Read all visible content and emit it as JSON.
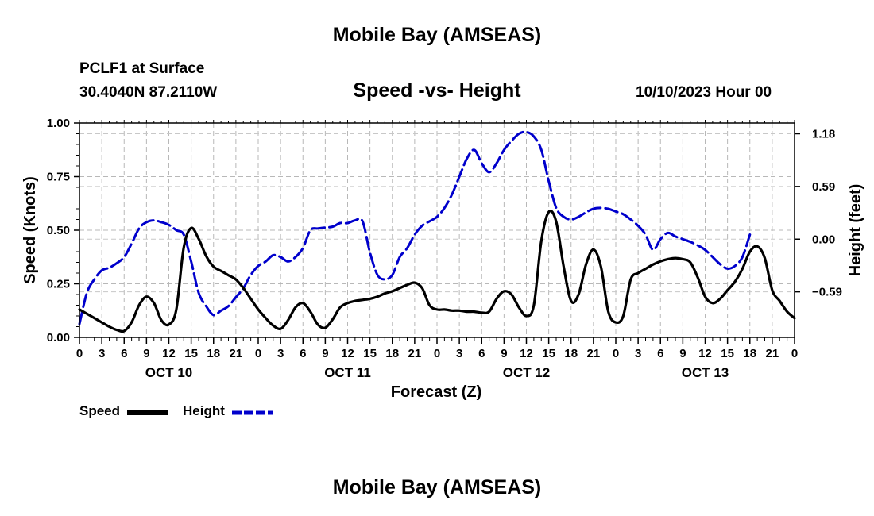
{
  "header": {
    "title": "Mobile Bay (AMSEAS)",
    "station": "PCLF1 at Surface",
    "coords": "30.4040N  87.2110W",
    "date": "10/10/2023 Hour 00",
    "footer_title": "Mobile Bay (AMSEAS)"
  },
  "chart_data": {
    "type": "line",
    "title": "Speed -vs- Height",
    "xlabel": "Forecast (Z)",
    "ylabel_left": "Speed (Knots)",
    "ylabel_right": "Height (feet)",
    "x_unit": "hours from 10/10/2023 00Z",
    "xlim": [
      0,
      96
    ],
    "ylim_left": [
      0,
      1
    ],
    "ylim_right": [
      -1.1,
      1.3
    ],
    "left_ticks": [
      {
        "v": 0,
        "label": "0.00"
      },
      {
        "v": 0.25,
        "label": "0.25"
      },
      {
        "v": 0.5,
        "label": "0.50"
      },
      {
        "v": 0.75,
        "label": "0.75"
      },
      {
        "v": 1.0,
        "label": "1.00"
      }
    ],
    "right_ticks": [
      {
        "v": 1.18,
        "label": "1.18"
      },
      {
        "v": 0.59,
        "label": "0.59"
      },
      {
        "v": 0.0,
        "label": "0.00"
      },
      {
        "v": -0.59,
        "label": "−0.59"
      }
    ],
    "x_ticks": [
      {
        "h": 0,
        "label": "0"
      },
      {
        "h": 3,
        "label": "3"
      },
      {
        "h": 6,
        "label": "6"
      },
      {
        "h": 9,
        "label": "9"
      },
      {
        "h": 12,
        "label": "12"
      },
      {
        "h": 15,
        "label": "15"
      },
      {
        "h": 18,
        "label": "18"
      },
      {
        "h": 21,
        "label": "21"
      },
      {
        "h": 24,
        "label": "0"
      },
      {
        "h": 27,
        "label": "3"
      },
      {
        "h": 30,
        "label": "6"
      },
      {
        "h": 33,
        "label": "9"
      },
      {
        "h": 36,
        "label": "12"
      },
      {
        "h": 39,
        "label": "15"
      },
      {
        "h": 42,
        "label": "18"
      },
      {
        "h": 45,
        "label": "21"
      },
      {
        "h": 48,
        "label": "0"
      },
      {
        "h": 51,
        "label": "3"
      },
      {
        "h": 54,
        "label": "6"
      },
      {
        "h": 57,
        "label": "9"
      },
      {
        "h": 60,
        "label": "12"
      },
      {
        "h": 63,
        "label": "15"
      },
      {
        "h": 66,
        "label": "18"
      },
      {
        "h": 69,
        "label": "21"
      },
      {
        "h": 72,
        "label": "0"
      },
      {
        "h": 75,
        "label": "3"
      },
      {
        "h": 78,
        "label": "6"
      },
      {
        "h": 81,
        "label": "9"
      },
      {
        "h": 84,
        "label": "12"
      },
      {
        "h": 87,
        "label": "15"
      },
      {
        "h": 90,
        "label": "18"
      },
      {
        "h": 93,
        "label": "21"
      },
      {
        "h": 96,
        "label": "0"
      }
    ],
    "day_labels": [
      {
        "h": 12,
        "label": "OCT 10"
      },
      {
        "h": 36,
        "label": "OCT 11"
      },
      {
        "h": 60,
        "label": "OCT 12"
      },
      {
        "h": 84,
        "label": "OCT 13"
      }
    ],
    "series": [
      {
        "name": "Speed",
        "axis": "left",
        "color": "#000000",
        "dash": "solid",
        "points": [
          [
            0,
            0.13
          ],
          [
            1,
            0.11
          ],
          [
            2,
            0.09
          ],
          [
            3,
            0.07
          ],
          [
            4,
            0.05
          ],
          [
            5,
            0.035
          ],
          [
            6,
            0.03
          ],
          [
            7,
            0.07
          ],
          [
            8,
            0.15
          ],
          [
            9,
            0.19
          ],
          [
            10,
            0.16
          ],
          [
            11,
            0.08
          ],
          [
            12,
            0.06
          ],
          [
            13,
            0.13
          ],
          [
            14,
            0.42
          ],
          [
            15,
            0.51
          ],
          [
            16,
            0.46
          ],
          [
            17,
            0.38
          ],
          [
            18,
            0.33
          ],
          [
            19,
            0.31
          ],
          [
            20,
            0.29
          ],
          [
            21,
            0.27
          ],
          [
            22,
            0.23
          ],
          [
            23,
            0.18
          ],
          [
            24,
            0.13
          ],
          [
            25,
            0.09
          ],
          [
            26,
            0.055
          ],
          [
            27,
            0.04
          ],
          [
            28,
            0.08
          ],
          [
            29,
            0.14
          ],
          [
            30,
            0.16
          ],
          [
            31,
            0.12
          ],
          [
            32,
            0.06
          ],
          [
            33,
            0.045
          ],
          [
            34,
            0.085
          ],
          [
            35,
            0.14
          ],
          [
            36,
            0.16
          ],
          [
            37,
            0.17
          ],
          [
            38,
            0.175
          ],
          [
            39,
            0.18
          ],
          [
            40,
            0.19
          ],
          [
            41,
            0.205
          ],
          [
            42,
            0.215
          ],
          [
            43,
            0.23
          ],
          [
            44,
            0.245
          ],
          [
            45,
            0.255
          ],
          [
            46,
            0.23
          ],
          [
            47,
            0.15
          ],
          [
            48,
            0.13
          ],
          [
            49,
            0.13
          ],
          [
            50,
            0.125
          ],
          [
            51,
            0.125
          ],
          [
            52,
            0.12
          ],
          [
            53,
            0.12
          ],
          [
            54,
            0.115
          ],
          [
            55,
            0.12
          ],
          [
            56,
            0.18
          ],
          [
            57,
            0.215
          ],
          [
            58,
            0.2
          ],
          [
            59,
            0.14
          ],
          [
            60,
            0.1
          ],
          [
            61,
            0.15
          ],
          [
            62,
            0.45
          ],
          [
            63,
            0.585
          ],
          [
            64,
            0.54
          ],
          [
            65,
            0.33
          ],
          [
            66,
            0.17
          ],
          [
            67,
            0.2
          ],
          [
            68,
            0.34
          ],
          [
            69,
            0.41
          ],
          [
            70,
            0.33
          ],
          [
            71,
            0.12
          ],
          [
            72,
            0.07
          ],
          [
            73,
            0.1
          ],
          [
            74,
            0.27
          ],
          [
            75,
            0.3
          ],
          [
            76,
            0.32
          ],
          [
            77,
            0.34
          ],
          [
            78,
            0.355
          ],
          [
            79,
            0.365
          ],
          [
            80,
            0.37
          ],
          [
            81,
            0.365
          ],
          [
            82,
            0.35
          ],
          [
            83,
            0.28
          ],
          [
            84,
            0.19
          ],
          [
            85,
            0.16
          ],
          [
            86,
            0.18
          ],
          [
            87,
            0.22
          ],
          [
            88,
            0.26
          ],
          [
            89,
            0.32
          ],
          [
            90,
            0.4
          ],
          [
            91,
            0.425
          ],
          [
            92,
            0.37
          ],
          [
            93,
            0.22
          ],
          [
            94,
            0.17
          ],
          [
            95,
            0.12
          ],
          [
            96,
            0.09
          ]
        ]
      },
      {
        "name": "Height",
        "axis": "right",
        "color": "#0000cc",
        "dash": "dashed",
        "points": [
          [
            0,
            -0.95
          ],
          [
            1,
            -0.6
          ],
          [
            2,
            -0.45
          ],
          [
            3,
            -0.35
          ],
          [
            4,
            -0.32
          ],
          [
            5,
            -0.27
          ],
          [
            6,
            -0.2
          ],
          [
            7,
            -0.05
          ],
          [
            8,
            0.12
          ],
          [
            9,
            0.19
          ],
          [
            10,
            0.21
          ],
          [
            11,
            0.19
          ],
          [
            12,
            0.16
          ],
          [
            13,
            0.1
          ],
          [
            14,
            0.05
          ],
          [
            15,
            -0.25
          ],
          [
            16,
            -0.6
          ],
          [
            17,
            -0.75
          ],
          [
            18,
            -0.85
          ],
          [
            19,
            -0.8
          ],
          [
            20,
            -0.75
          ],
          [
            21,
            -0.65
          ],
          [
            22,
            -0.55
          ],
          [
            23,
            -0.4
          ],
          [
            24,
            -0.3
          ],
          [
            25,
            -0.25
          ],
          [
            26,
            -0.18
          ],
          [
            27,
            -0.2
          ],
          [
            28,
            -0.25
          ],
          [
            29,
            -0.2
          ],
          [
            30,
            -0.1
          ],
          [
            31,
            0.1
          ],
          [
            32,
            0.12
          ],
          [
            33,
            0.13
          ],
          [
            34,
            0.14
          ],
          [
            35,
            0.18
          ],
          [
            36,
            0.18
          ],
          [
            37,
            0.21
          ],
          [
            38,
            0.2
          ],
          [
            39,
            -0.15
          ],
          [
            40,
            -0.4
          ],
          [
            41,
            -0.45
          ],
          [
            42,
            -0.4
          ],
          [
            43,
            -0.2
          ],
          [
            44,
            -0.1
          ],
          [
            45,
            0.05
          ],
          [
            46,
            0.15
          ],
          [
            47,
            0.2
          ],
          [
            48,
            0.25
          ],
          [
            49,
            0.35
          ],
          [
            50,
            0.5
          ],
          [
            51,
            0.7
          ],
          [
            52,
            0.9
          ],
          [
            53,
            1.0
          ],
          [
            54,
            0.85
          ],
          [
            55,
            0.75
          ],
          [
            56,
            0.85
          ],
          [
            57,
            1.0
          ],
          [
            58,
            1.1
          ],
          [
            59,
            1.18
          ],
          [
            60,
            1.2
          ],
          [
            61,
            1.15
          ],
          [
            62,
            1.0
          ],
          [
            63,
            0.65
          ],
          [
            64,
            0.35
          ],
          [
            65,
            0.25
          ],
          [
            66,
            0.22
          ],
          [
            67,
            0.25
          ],
          [
            68,
            0.3
          ],
          [
            69,
            0.34
          ],
          [
            70,
            0.35
          ],
          [
            71,
            0.34
          ],
          [
            72,
            0.31
          ],
          [
            73,
            0.28
          ],
          [
            74,
            0.22
          ],
          [
            75,
            0.15
          ],
          [
            76,
            0.05
          ],
          [
            77,
            -0.12
          ],
          [
            78,
            0.0
          ],
          [
            79,
            0.07
          ],
          [
            80,
            0.03
          ],
          [
            81,
            0.0
          ],
          [
            82,
            -0.03
          ],
          [
            83,
            -0.07
          ],
          [
            84,
            -0.12
          ],
          [
            85,
            -0.2
          ],
          [
            86,
            -0.28
          ],
          [
            87,
            -0.33
          ],
          [
            88,
            -0.3
          ],
          [
            89,
            -0.2
          ],
          [
            90,
            0.05
          ]
        ]
      }
    ],
    "legend": [
      {
        "label": "Speed",
        "color": "#000000",
        "dash": "solid"
      },
      {
        "label": "Height",
        "color": "#0000cc",
        "dash": "dashed"
      }
    ]
  }
}
